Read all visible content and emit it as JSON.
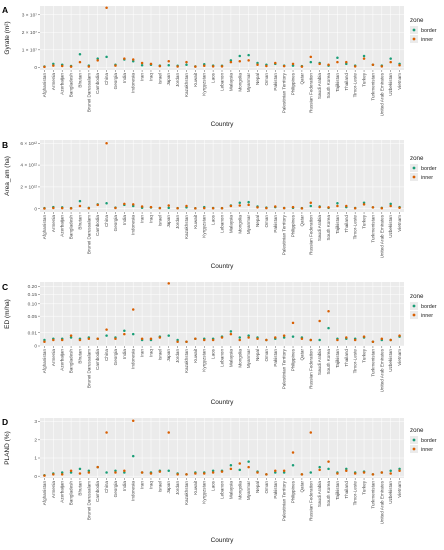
{
  "zone_legend": {
    "title": "zone",
    "entries": [
      {
        "name": "border",
        "color": "#1a9e77"
      },
      {
        "name": "inner",
        "color": "#d95f02"
      }
    ]
  },
  "chart_data": [
    {
      "type": "scatter",
      "panel_label": "A",
      "xlabel": "Country",
      "ylabel": "Gyrate (m²)",
      "y_ticks": [
        {
          "value": 0,
          "label": "0"
        },
        {
          "value": 10000000.0,
          "label": "1 × 10⁷"
        },
        {
          "value": 20000000.0,
          "label": "2 × 10⁷"
        },
        {
          "value": 30000000.0,
          "label": "3 × 10⁷"
        }
      ],
      "ylim": [
        -1500000,
        35000000
      ],
      "grid": true,
      "legend_position": "right",
      "categories": [
        "Afghanistan",
        "Armenia",
        "Azerbaijan",
        "Bangladesh",
        "Bhutan",
        "Brunei Darussalam",
        "Cambodia",
        "China",
        "Georgia",
        "India",
        "Indonesia",
        "Iran",
        "Iraq",
        "Israel",
        "Japan",
        "Jordan",
        "Kazakhstan",
        "Kuwait",
        "Kyrgyzstan",
        "Laos",
        "Lebanon",
        "Malaysia",
        "Mongolia",
        "Myanmar",
        "Nepal",
        "Oman",
        "Pakistan",
        "Palestinian Territory",
        "Philippines",
        "Qatar",
        "Russian Federation",
        "Saudi Arabia",
        "South Korea",
        "Tajikistan",
        "Thailand",
        "Timor-Leste",
        "Turkey",
        "Turkmenistan",
        "United Arab Emirates",
        "Uzbekistan",
        "Vietnam"
      ],
      "series": [
        {
          "name": "border",
          "values": [
            500000,
            2000000,
            1500000,
            800000,
            7500000,
            1000000,
            5000000,
            6000000,
            1500000,
            4500000,
            3500000,
            1200000,
            1500000,
            1000000,
            1200000,
            900000,
            1500000,
            600000,
            1800000,
            1000000,
            900000,
            4000000,
            6500000,
            7000000,
            2500000,
            1500000,
            2000000,
            1000000,
            1000000,
            700000,
            3000000,
            2500000,
            1000000,
            5500000,
            2000000,
            1000000,
            6500000,
            1500000,
            1000000,
            5000000,
            2000000
          ]
        },
        {
          "name": "inner",
          "values": [
            300000,
            1000000,
            800000,
            400000,
            3000000,
            500000,
            4000000,
            34000000,
            1000000,
            5000000,
            4500000,
            2500000,
            2000000,
            700000,
            3500000,
            500000,
            3000000,
            400000,
            900000,
            600000,
            600000,
            3000000,
            3500000,
            4000000,
            1500000,
            800000,
            2500000,
            700000,
            2000000,
            400000,
            6000000,
            2000000,
            1500000,
            3000000,
            3000000,
            600000,
            5000000,
            1500000,
            600000,
            3000000,
            1200000
          ]
        }
      ]
    },
    {
      "type": "scatter",
      "panel_label": "B",
      "xlabel": "Country",
      "ylabel": "Area_am (ha)",
      "y_ticks": [
        {
          "value": 0,
          "label": "0"
        },
        {
          "value": 2000000000000.0,
          "label": "2 × 10¹²"
        },
        {
          "value": 4000000000000.0,
          "label": "4 × 10¹²"
        },
        {
          "value": 6000000000000.0,
          "label": "6 × 10¹²"
        }
      ],
      "ylim": [
        -300000000000,
        6300000000000
      ],
      "grid": true,
      "legend_position": "right",
      "categories": [
        "Afghanistan",
        "Armenia",
        "Azerbaijan",
        "Bangladesh",
        "Bhutan",
        "Brunei Darussalam",
        "Cambodia",
        "China",
        "Georgia",
        "India",
        "Indonesia",
        "Iran",
        "Iraq",
        "Israel",
        "Japan",
        "Jordan",
        "Kazakhstan",
        "Kuwait",
        "Kyrgyzstan",
        "Laos",
        "Lebanon",
        "Malaysia",
        "Mongolia",
        "Myanmar",
        "Nepal",
        "Oman",
        "Pakistan",
        "Palestinian Territory",
        "Philippines",
        "Qatar",
        "Russian Federation",
        "Saudi Arabia",
        "South Korea",
        "Tajikistan",
        "Thailand",
        "Timor-Leste",
        "Turkey",
        "Turkmenistan",
        "United Arab Emirates",
        "Uzbekistan",
        "Vietnam"
      ],
      "series": [
        {
          "name": "border",
          "values": [
            50000000000,
            150000000000,
            120000000000,
            60000000000,
            700000000000,
            80000000000,
            400000000000,
            500000000000,
            100000000000,
            350000000000,
            250000000000,
            90000000000,
            110000000000,
            70000000000,
            80000000000,
            60000000000,
            120000000000,
            40000000000,
            150000000000,
            70000000000,
            60000000000,
            300000000000,
            550000000000,
            600000000000,
            200000000000,
            100000000000,
            150000000000,
            70000000000,
            80000000000,
            50000000000,
            250000000000,
            200000000000,
            80000000000,
            500000000000,
            150000000000,
            70000000000,
            550000000000,
            120000000000,
            80000000000,
            450000000000,
            150000000000
          ]
        },
        {
          "name": "inner",
          "values": [
            20000000000,
            70000000000,
            50000000000,
            30000000000,
            250000000000,
            40000000000,
            350000000000,
            6000000000000,
            70000000000,
            450000000000,
            400000000000,
            200000000000,
            150000000000,
            50000000000,
            300000000000,
            40000000000,
            250000000000,
            30000000000,
            60000000000,
            40000000000,
            40000000000,
            250000000000,
            300000000000,
            350000000000,
            120000000000,
            60000000000,
            200000000000,
            50000000000,
            150000000000,
            30000000000,
            550000000000,
            150000000000,
            120000000000,
            250000000000,
            250000000000,
            40000000000,
            400000000000,
            120000000000,
            40000000000,
            250000000000,
            90000000000
          ]
        }
      ]
    },
    {
      "type": "scatter",
      "panel_label": "C",
      "xlabel": "Country",
      "ylabel": "ED (m/ha)",
      "y_scale": "sqrt",
      "y_ticks": [
        {
          "value": 0,
          "label": "0"
        },
        {
          "value": 0.01,
          "label": "0.01"
        },
        {
          "value": 0.05,
          "label": "0.05"
        },
        {
          "value": 0.1,
          "label": "0.10"
        },
        {
          "value": 0.15,
          "label": "0.15"
        },
        {
          "value": 0.2,
          "label": "0.20"
        }
      ],
      "ylim": [
        0,
        0.23
      ],
      "grid": true,
      "legend_position": "right",
      "categories": [
        "Afghanistan",
        "Armenia",
        "Azerbaijan",
        "Bangladesh",
        "Bhutan",
        "Brunei Darussalam",
        "Cambodia",
        "China",
        "Georgia",
        "India",
        "Indonesia",
        "Iran",
        "Iraq",
        "Israel",
        "Japan",
        "Jordan",
        "Kazakhstan",
        "Kuwait",
        "Kyrgyzstan",
        "Laos",
        "Lebanon",
        "Malaysia",
        "Mongolia",
        "Myanmar",
        "Nepal",
        "Oman",
        "Pakistan",
        "Palestinian Territory",
        "Philippines",
        "Qatar",
        "Russian Federation",
        "Saudi Arabia",
        "South Korea",
        "Tajikistan",
        "Thailand",
        "Timor-Leste",
        "Turkey",
        "Turkmenistan",
        "United Arab Emirates",
        "Uzbekistan",
        "Vietnam"
      ],
      "series": [
        {
          "name": "border",
          "values": [
            0.002,
            0.003,
            0.003,
            0.004,
            0.003,
            0.004,
            0.003,
            0.006,
            0.004,
            0.013,
            0.008,
            0.002,
            0.002,
            0.005,
            0.006,
            0.002,
            0.001,
            0.003,
            0.003,
            0.003,
            0.005,
            0.012,
            0.004,
            0.006,
            0.004,
            0.002,
            0.003,
            0.004,
            0.005,
            0.004,
            0.002,
            0.002,
            0.018,
            0.003,
            0.003,
            0.003,
            0.004,
            0.001,
            0.002,
            0.002,
            0.005
          ]
        },
        {
          "name": "inner",
          "values": [
            0.001,
            0.002,
            0.002,
            0.006,
            0.002,
            0.003,
            0.003,
            0.015,
            0.003,
            0.008,
            0.075,
            0.003,
            0.003,
            0.004,
            0.22,
            0.001,
            0.001,
            0.003,
            0.002,
            0.002,
            0.004,
            0.008,
            0.002,
            0.004,
            0.003,
            0.002,
            0.004,
            0.006,
            0.03,
            0.003,
            0.002,
            0.035,
            0.068,
            0.002,
            0.004,
            0.002,
            0.005,
            0.001,
            0.003,
            0.002,
            0.006
          ]
        }
      ]
    },
    {
      "type": "scatter",
      "panel_label": "D",
      "xlabel": "Country",
      "ylabel": "PLAND (%)",
      "y_ticks": [
        {
          "value": 0,
          "label": "0"
        },
        {
          "value": 1,
          "label": "1"
        },
        {
          "value": 2,
          "label": "2"
        },
        {
          "value": 3,
          "label": "3"
        }
      ],
      "ylim": [
        -0.1,
        3.2
      ],
      "grid": true,
      "legend_position": "right",
      "categories": [
        "Afghanistan",
        "Armenia",
        "Azerbaijan",
        "Bangladesh",
        "Bhutan",
        "Brunei Darussalam",
        "Cambodia",
        "China",
        "Georgia",
        "India",
        "Indonesia",
        "Iran",
        "Iraq",
        "Israel",
        "Japan",
        "Jordan",
        "Kazakhstan",
        "Kuwait",
        "Kyrgyzstan",
        "Laos",
        "Lebanon",
        "Malaysia",
        "Mongolia",
        "Myanmar",
        "Nepal",
        "Oman",
        "Pakistan",
        "Palestinian Territory",
        "Philippines",
        "Qatar",
        "Russian Federation",
        "Saudi Arabia",
        "South Korea",
        "Tajikistan",
        "Thailand",
        "Timor-Leste",
        "Turkey",
        "Turkmenistan",
        "United Arab Emirates",
        "Uzbekistan",
        "Vietnam"
      ],
      "series": [
        {
          "name": "border",
          "values": [
            0.05,
            0.15,
            0.2,
            0.2,
            0.4,
            0.3,
            0.5,
            0.2,
            0.3,
            0.2,
            1.1,
            0.2,
            0.2,
            0.3,
            0.3,
            0.15,
            0.1,
            0.2,
            0.2,
            0.3,
            0.3,
            0.6,
            0.35,
            0.8,
            0.25,
            0.1,
            0.2,
            0.2,
            0.6,
            0.1,
            0.2,
            0.5,
            0.4,
            0.2,
            0.4,
            0.2,
            0.25,
            0.1,
            0.2,
            0.3,
            0.4
          ]
        },
        {
          "name": "inner",
          "values": [
            0.03,
            0.1,
            0.1,
            0.3,
            0.15,
            0.2,
            0.5,
            2.4,
            0.2,
            0.3,
            3.05,
            0.2,
            0.15,
            0.25,
            2.4,
            0.1,
            0.1,
            0.15,
            0.15,
            0.2,
            0.25,
            0.4,
            0.7,
            0.5,
            0.2,
            0.1,
            0.3,
            0.3,
            1.3,
            0.1,
            2.4,
            0.35,
            0.8,
            0.15,
            0.3,
            0.15,
            0.2,
            0.1,
            0.2,
            0.15,
            0.3
          ]
        }
      ]
    }
  ]
}
